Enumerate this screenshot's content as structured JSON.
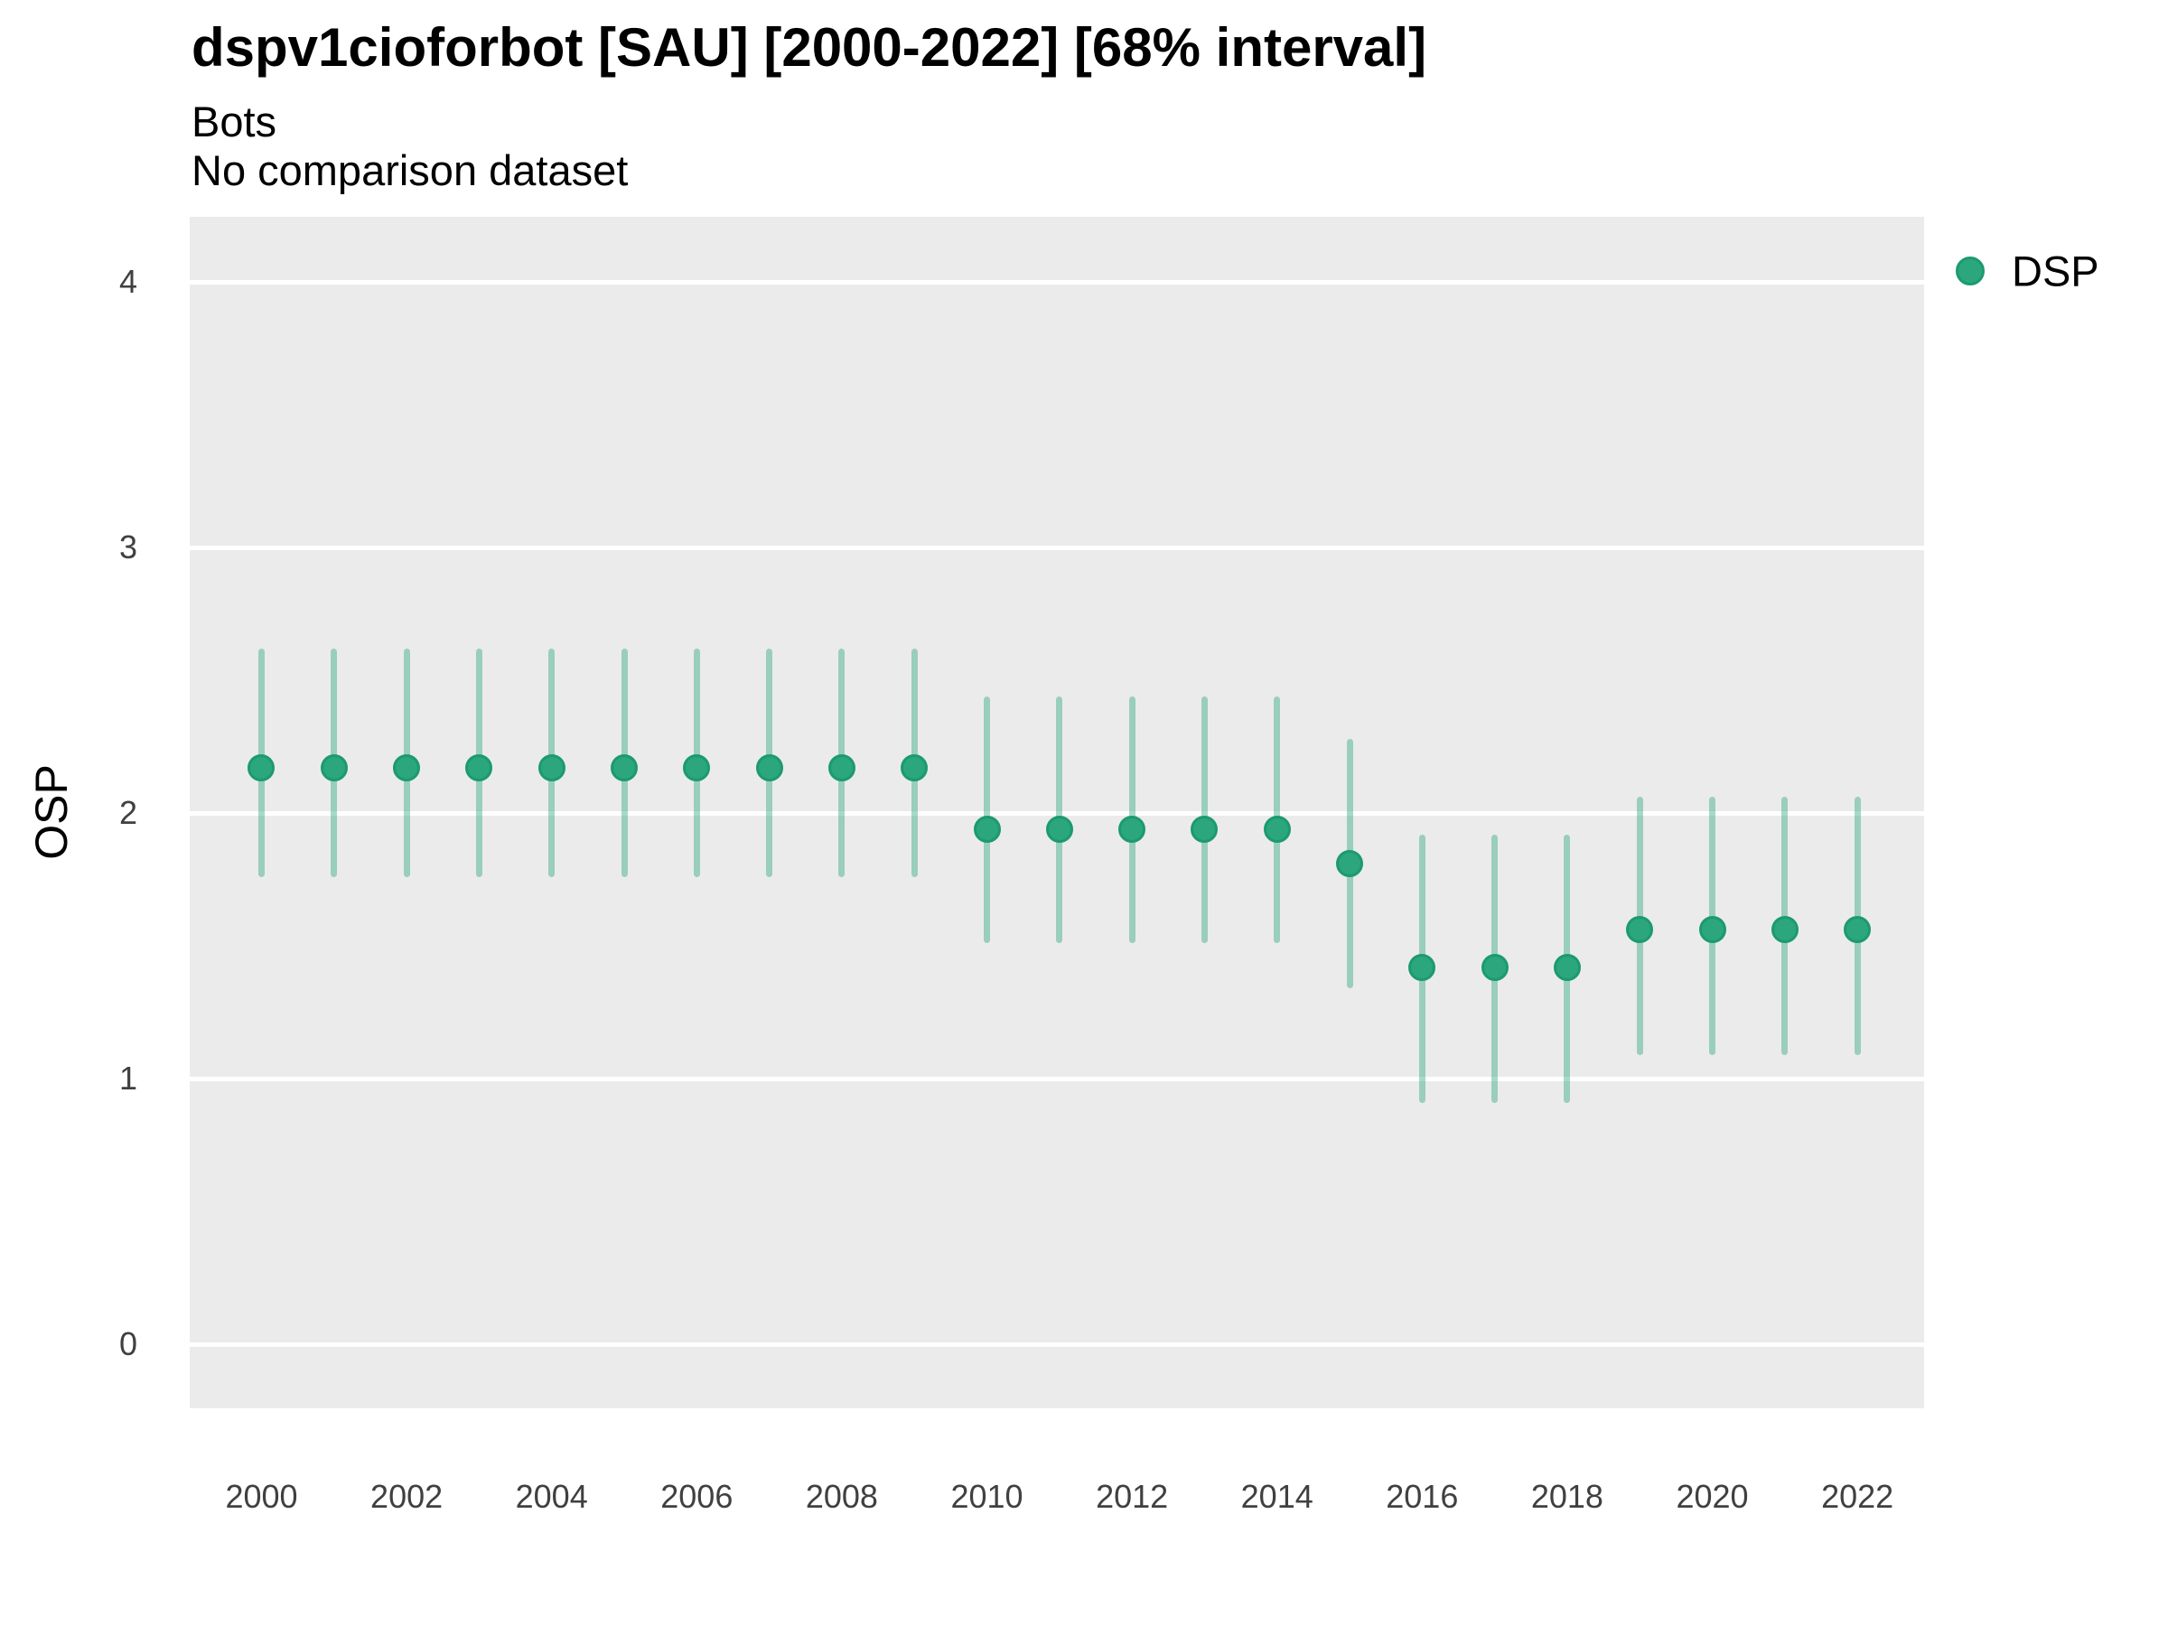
{
  "header": {
    "title": "dspv1cioforbot [SAU] [2000-2022] [68% interval]",
    "subtitle": "Bots",
    "caption": "No comparison dataset"
  },
  "legend": {
    "label": "DSP"
  },
  "colors": {
    "point_fill": "#2BA67D",
    "point_stroke": "#1C9A6F",
    "interval_color": "rgba(43,166,125,0.42)",
    "panel_bg": "#EBEBEB",
    "grid_color": "#FFFFFF",
    "tick_text": "#404040",
    "text": "#000000"
  },
  "chart_data": {
    "type": "scatter",
    "subtype": "pointrange",
    "title": "dspv1cioforbot [SAU] [2000-2022] [68% interval]",
    "subtitle": "Bots",
    "caption": "No comparison dataset",
    "xlabel": "",
    "ylabel": "OSP",
    "interval": "68%",
    "legend_position": "right",
    "grid": "major-horizontal-only",
    "x": [
      2000,
      2001,
      2002,
      2003,
      2004,
      2005,
      2006,
      2007,
      2008,
      2009,
      2010,
      2011,
      2012,
      2013,
      2014,
      2015,
      2016,
      2017,
      2018,
      2019,
      2020,
      2021,
      2022
    ],
    "series": [
      {
        "name": "DSP",
        "values": [
          2.17,
          2.17,
          2.17,
          2.17,
          2.17,
          2.17,
          2.17,
          2.17,
          2.17,
          2.17,
          1.94,
          1.94,
          1.94,
          1.94,
          1.94,
          1.81,
          1.42,
          1.42,
          1.42,
          1.56,
          1.56,
          1.56,
          1.56
        ],
        "lower": [
          1.76,
          1.76,
          1.76,
          1.76,
          1.76,
          1.76,
          1.76,
          1.76,
          1.76,
          1.76,
          1.51,
          1.51,
          1.51,
          1.51,
          1.51,
          1.34,
          0.91,
          0.91,
          0.91,
          1.09,
          1.09,
          1.09,
          1.09
        ],
        "upper": [
          2.62,
          2.62,
          2.62,
          2.62,
          2.62,
          2.62,
          2.62,
          2.62,
          2.62,
          2.62,
          2.44,
          2.44,
          2.44,
          2.44,
          2.44,
          2.28,
          1.92,
          1.92,
          1.92,
          2.06,
          2.06,
          2.06,
          2.06
        ]
      }
    ],
    "x_ticks": [
      2000,
      2002,
      2004,
      2006,
      2008,
      2010,
      2012,
      2014,
      2016,
      2018,
      2020,
      2022
    ],
    "y_ticks": [
      0,
      1,
      2,
      3,
      4
    ],
    "xlim": [
      1999.01,
      2022.92
    ],
    "ylim": [
      -0.241,
      4.245
    ]
  }
}
